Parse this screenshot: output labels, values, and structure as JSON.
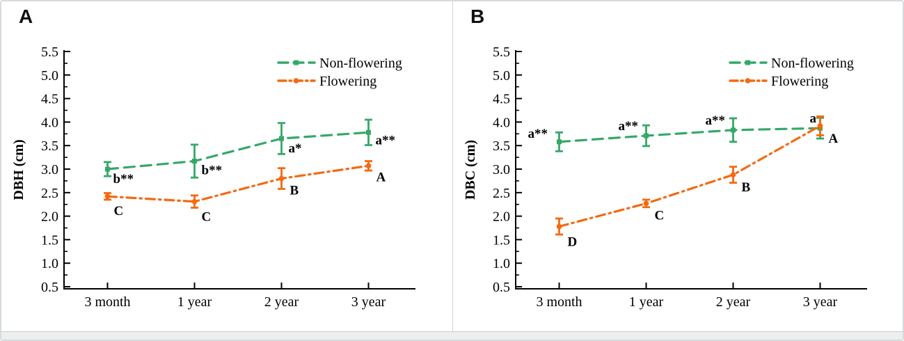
{
  "figure": {
    "background": "#ffffff",
    "border_color": "#d7dada",
    "divider_color": "#d2d6d6",
    "footer_strip_color": "#edefef",
    "axis_color": "#000000",
    "green_accent": "#35a868",
    "orange_accent": "#f5690f"
  },
  "chart_data": [
    {
      "type": "line",
      "panel_label": "A",
      "ylabel": "DBH (cm)",
      "xlabel": "",
      "categories": [
        "3 month",
        "1 year",
        "2 year",
        "3 year"
      ],
      "ylim": [
        0.5,
        5.5
      ],
      "ytick_step": 0.5,
      "minor_tick_step": 0.25,
      "ytick_labels": [
        "0.5",
        "1.0",
        "1.5",
        "2.0",
        "2.5",
        "3.0",
        "3.5",
        "4.0",
        "4.5",
        "5.0",
        "5.5"
      ],
      "grid": false,
      "legend_position": "top-right",
      "series": [
        {
          "name": "Non-flowering",
          "color": "#35a868",
          "line_style": "dashed",
          "marker": "square",
          "values": [
            3.0,
            3.17,
            3.65,
            3.78
          ],
          "errors": [
            0.15,
            0.35,
            0.33,
            0.27
          ],
          "point_labels": [
            "b**",
            "b**",
            "a*",
            "a**"
          ],
          "label_offsets": [
            [
              8,
              20
            ],
            [
              10,
              19
            ],
            [
              10,
              20
            ],
            [
              10,
              17
            ]
          ]
        },
        {
          "name": "Flowering",
          "color": "#f5690f",
          "line_style": "dashdot",
          "marker": "circle",
          "values": [
            2.42,
            2.31,
            2.8,
            3.07
          ],
          "errors": [
            0.07,
            0.13,
            0.22,
            0.1
          ],
          "point_labels": [
            "C",
            "C",
            "B",
            "A"
          ],
          "label_offsets": [
            [
              9,
              27
            ],
            [
              10,
              28
            ],
            [
              12,
              23
            ],
            [
              11,
              22
            ]
          ]
        }
      ]
    },
    {
      "type": "line",
      "panel_label": "B",
      "ylabel": "DBC (cm)",
      "xlabel": "",
      "categories": [
        "3 month",
        "1 year",
        "2 year",
        "3 year"
      ],
      "ylim": [
        0.5,
        5.5
      ],
      "ytick_step": 0.5,
      "minor_tick_step": 0.25,
      "ytick_labels": [
        "0.5",
        "1.0",
        "1.5",
        "2.0",
        "2.5",
        "3.0",
        "3.5",
        "4.0",
        "4.5",
        "5.0",
        "5.5"
      ],
      "grid": false,
      "legend_position": "top-right",
      "series": [
        {
          "name": "Non-flowering",
          "color": "#35a868",
          "line_style": "dashed",
          "marker": "square",
          "values": [
            3.58,
            3.71,
            3.83,
            3.87
          ],
          "errors": [
            0.2,
            0.22,
            0.25,
            0.22
          ],
          "point_labels": [
            "a**",
            "a**",
            "a**",
            "a"
          ],
          "label_offsets": [
            [
              -45,
              -6
            ],
            [
              -40,
              -8
            ],
            [
              -40,
              -8
            ],
            [
              -15,
              -8
            ]
          ]
        },
        {
          "name": "Flowering",
          "color": "#f5690f",
          "line_style": "dashdot",
          "marker": "circle",
          "values": [
            1.78,
            2.27,
            2.88,
            3.92
          ],
          "errors": [
            0.17,
            0.08,
            0.17,
            0.2
          ],
          "point_labels": [
            "D",
            "C",
            "B",
            "A"
          ],
          "label_offsets": [
            [
              12,
              28
            ],
            [
              12,
              23
            ],
            [
              12,
              24
            ],
            [
              12,
              24
            ]
          ]
        }
      ]
    }
  ]
}
